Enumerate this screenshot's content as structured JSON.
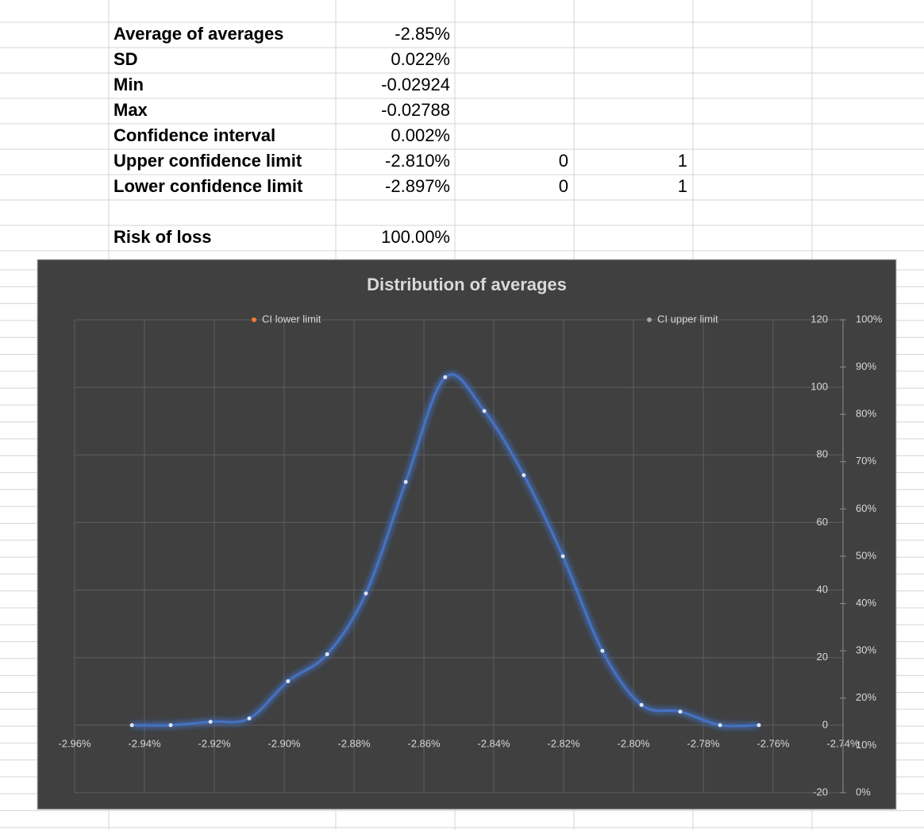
{
  "table": {
    "rows": [
      [
        "Average of averages",
        "-2.85%"
      ],
      [
        "SD",
        "0.022%"
      ],
      [
        "Min",
        "-0.02924"
      ],
      [
        "Max",
        "-0.02788"
      ],
      [
        "Confidence interval",
        "0.002%"
      ],
      [
        "Upper confidence limit",
        "-2.810%",
        "0",
        "1"
      ],
      [
        "Lower confidence limit",
        "-2.897%",
        "0",
        "1"
      ],
      [
        "Risk of loss",
        "100.00%"
      ]
    ]
  },
  "chart_data": {
    "type": "line",
    "title": "Distribution of averages",
    "smooth": true,
    "grid": true,
    "xlim": [
      -2.96,
      -2.74
    ],
    "xticks": [
      {
        "value": -2.96,
        "label": "-2.96%"
      },
      {
        "value": -2.94,
        "label": "-2.94%"
      },
      {
        "value": -2.92,
        "label": "-2.92%"
      },
      {
        "value": -2.9,
        "label": "-2.90%"
      },
      {
        "value": -2.88,
        "label": "-2.88%"
      },
      {
        "value": -2.86,
        "label": "-2.86%"
      },
      {
        "value": -2.84,
        "label": "-2.84%"
      },
      {
        "value": -2.82,
        "label": "-2.82%"
      },
      {
        "value": -2.8,
        "label": "-2.80%"
      },
      {
        "value": -2.78,
        "label": "-2.78%"
      },
      {
        "value": -2.76,
        "label": "-2.76%"
      },
      {
        "value": -2.74,
        "label": "-2.74%"
      }
    ],
    "ylim": [
      -20,
      120
    ],
    "yticks": [
      -20,
      0,
      20,
      40,
      60,
      80,
      100,
      120
    ],
    "y2lim": [
      0,
      1
    ],
    "y2ticks": [
      {
        "value": 0,
        "label": "0%"
      },
      {
        "value": 0.1,
        "label": "10%"
      },
      {
        "value": 0.2,
        "label": "20%"
      },
      {
        "value": 0.3,
        "label": "30%"
      },
      {
        "value": 0.4,
        "label": "40%"
      },
      {
        "value": 0.5,
        "label": "50%"
      },
      {
        "value": 0.6,
        "label": "60%"
      },
      {
        "value": 0.7,
        "label": "70%"
      },
      {
        "value": 0.8,
        "label": "80%"
      },
      {
        "value": 0.9,
        "label": "90%"
      },
      {
        "value": 1,
        "label": "100%"
      }
    ],
    "series": [
      {
        "color": "#4472c4",
        "x": [
          -2.9436,
          -2.9325,
          -2.9211,
          -2.91,
          -2.8989,
          -2.8877,
          -2.8766,
          -2.8652,
          -2.8539,
          -2.8427,
          -2.8314,
          -2.8202,
          -2.8089,
          -2.7977,
          -2.7866,
          -2.7752,
          -2.7641
        ],
        "values": [
          0,
          0,
          1,
          2,
          13,
          21,
          39,
          72,
          103,
          93,
          74,
          50,
          22,
          6,
          4,
          0,
          0
        ]
      },
      {
        "name": "CI lower limit",
        "color": "#ed7d31"
      },
      {
        "name": "CI upper limit",
        "color": "#a5a5a5"
      }
    ]
  }
}
